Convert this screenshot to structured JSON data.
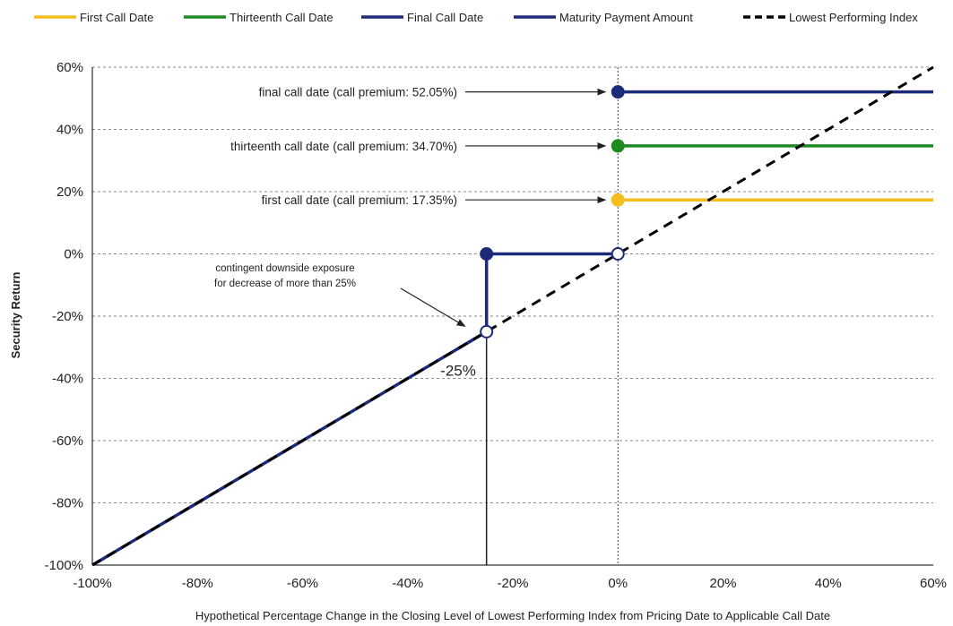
{
  "chart_data": {
    "type": "line",
    "title": "",
    "xlabel": "Hypothetical Percentage Change in the Closing Level of Lowest Performing Index from Pricing Date to Applicable Call Date",
    "ylabel": "Security Return",
    "xlim": [
      -100,
      60
    ],
    "ylim": [
      -100,
      60
    ],
    "x_ticks": [
      -100,
      -80,
      -60,
      -40,
      -20,
      0,
      20,
      40,
      60
    ],
    "x_tick_labels": [
      "-100%",
      "-80%",
      "-60%",
      "-40%",
      "-20%",
      "0%",
      "20%",
      "40%",
      "60%"
    ],
    "y_ticks": [
      -100,
      -80,
      -60,
      -40,
      -20,
      0,
      20,
      40,
      60
    ],
    "y_tick_labels": [
      "-100%",
      "-80%",
      "-60%",
      "-40%",
      "-20%",
      "0%",
      "20%",
      "40%",
      "60%"
    ],
    "grid": "horizontal-dashed",
    "legend_position": "top",
    "series": [
      {
        "name": "First Call Date",
        "color": "#F5BE1E",
        "x": [
          0,
          60
        ],
        "y": [
          17.35,
          17.35
        ]
      },
      {
        "name": "Thirteenth Call Date",
        "color": "#1E8A22",
        "x": [
          0,
          60
        ],
        "y": [
          34.7,
          34.7
        ]
      },
      {
        "name": "Final Call Date",
        "color": "#1C2A7A",
        "x": [
          0,
          60
        ],
        "y": [
          52.05,
          52.05
        ]
      },
      {
        "name": "Maturity Payment Amount",
        "color": "#1C2A7A",
        "x": [
          -100,
          -25,
          -25,
          0
        ],
        "y": [
          -100,
          -25,
          0,
          0
        ]
      },
      {
        "name": "Lowest Performing Index",
        "color": "#000000",
        "dashed": true,
        "x": [
          -100,
          60
        ],
        "y": [
          -100,
          60
        ]
      }
    ],
    "markers": [
      {
        "x": 0,
        "y": 52.05,
        "filled": true,
        "color": "#1C2A7A"
      },
      {
        "x": 0,
        "y": 34.7,
        "filled": true,
        "color": "#1E8A22"
      },
      {
        "x": 0,
        "y": 17.35,
        "filled": true,
        "color": "#F5BE1E"
      },
      {
        "x": 0,
        "y": 0,
        "filled": false,
        "color": "#1C2A7A"
      },
      {
        "x": -25,
        "y": 0,
        "filled": true,
        "color": "#1C2A7A"
      },
      {
        "x": -25,
        "y": -25,
        "filled": false,
        "color": "#1C2A7A"
      }
    ],
    "annotations": [
      {
        "text": "final call date (call premium: 52.05%)",
        "x": 0,
        "y": 52.05
      },
      {
        "text": "thirteenth call date (call premium: 34.70%)",
        "x": 0,
        "y": 34.7
      },
      {
        "text": "first call date (call premium: 17.35%)",
        "x": 0,
        "y": 17.35
      },
      {
        "text": "contingent downside exposure",
        "x": -25,
        "y": -25
      },
      {
        "text": "for decrease of more than 25%",
        "x": -25,
        "y": -25
      },
      {
        "text": "-25%",
        "x": -25,
        "y": -50
      }
    ]
  }
}
